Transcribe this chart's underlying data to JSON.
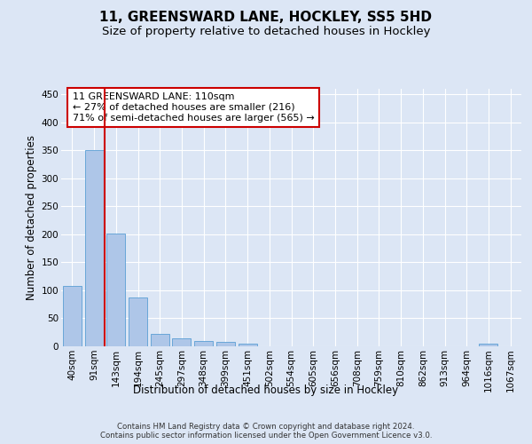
{
  "title1": "11, GREENSWARD LANE, HOCKLEY, SS5 5HD",
  "title2": "Size of property relative to detached houses in Hockley",
  "xlabel": "Distribution of detached houses by size in Hockley",
  "ylabel": "Number of detached properties",
  "categories": [
    "40sqm",
    "91sqm",
    "143sqm",
    "194sqm",
    "245sqm",
    "297sqm",
    "348sqm",
    "399sqm",
    "451sqm",
    "502sqm",
    "554sqm",
    "605sqm",
    "656sqm",
    "708sqm",
    "759sqm",
    "810sqm",
    "862sqm",
    "913sqm",
    "964sqm",
    "1016sqm",
    "1067sqm"
  ],
  "values": [
    108,
    350,
    202,
    88,
    23,
    15,
    9,
    8,
    4,
    0,
    0,
    0,
    0,
    0,
    0,
    0,
    0,
    0,
    0,
    4,
    0
  ],
  "bar_color": "#aec6e8",
  "bar_edge_color": "#5a9fd4",
  "vline_x_index": 1.5,
  "vline_color": "#cc0000",
  "annotation_text": "11 GREENSWARD LANE: 110sqm\n← 27% of detached houses are smaller (216)\n71% of semi-detached houses are larger (565) →",
  "annotation_box_color": "#ffffff",
  "annotation_box_edge": "#cc0000",
  "background_color": "#dce6f5",
  "plot_bg_color": "#dce6f5",
  "grid_color": "#ffffff",
  "ylim": [
    0,
    460
  ],
  "yticks": [
    0,
    50,
    100,
    150,
    200,
    250,
    300,
    350,
    400,
    450
  ],
  "footer_text": "Contains HM Land Registry data © Crown copyright and database right 2024.\nContains public sector information licensed under the Open Government Licence v3.0.",
  "title1_fontsize": 11,
  "title2_fontsize": 9.5,
  "xlabel_fontsize": 8.5,
  "ylabel_fontsize": 8.5,
  "tick_fontsize": 7.5,
  "annotation_fontsize": 8
}
